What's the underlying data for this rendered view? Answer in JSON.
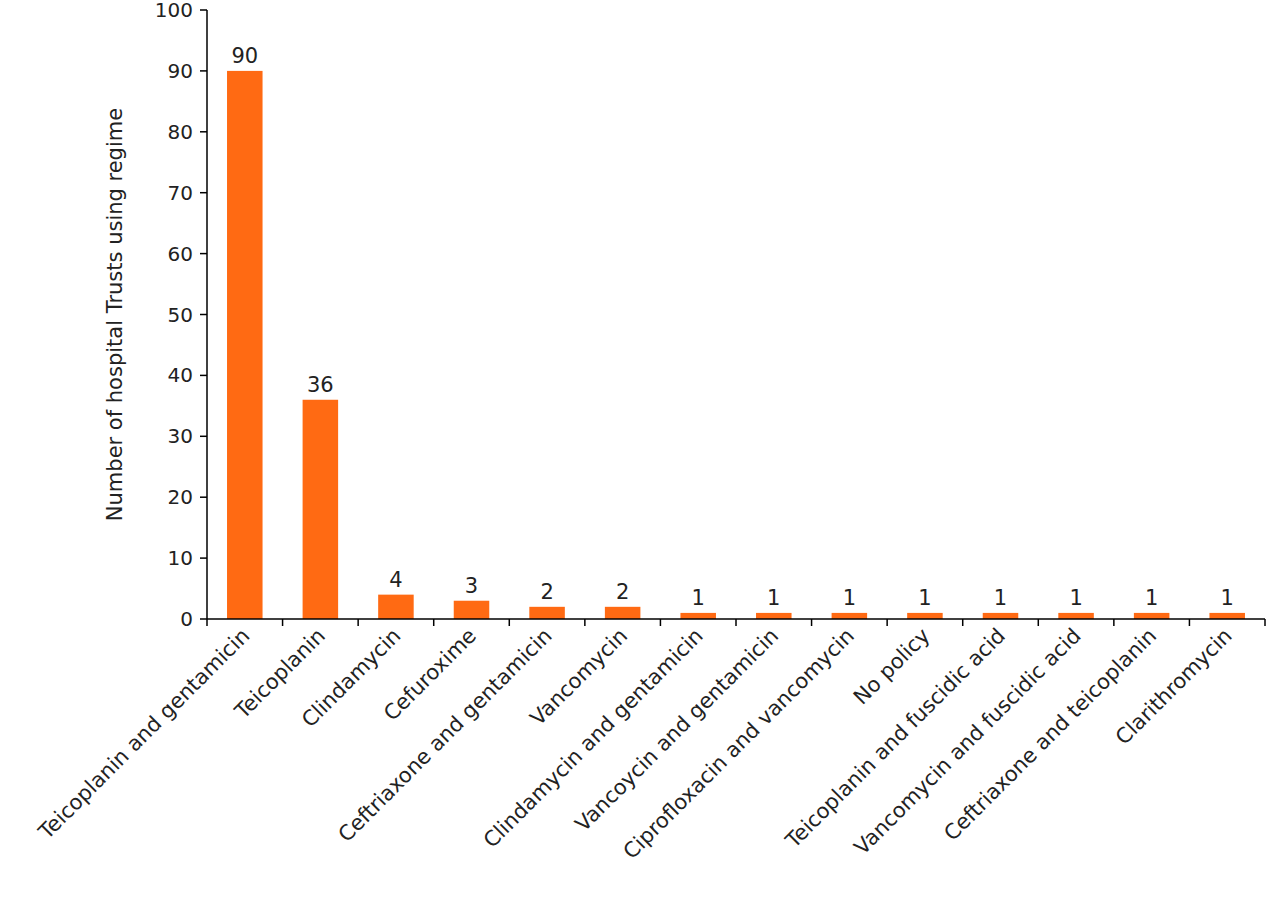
{
  "chart_data": {
    "type": "bar",
    "y_label": "Number of hospital Trusts using regime",
    "categories": [
      "Teicoplanin and gentamicin",
      "Teicoplanin",
      "Clindamycin",
      "Cefuroxime",
      "Ceftriaxone and gentamicin",
      "Vancomycin",
      "Clindamycin and gentamicin",
      "Vancoycin and gentamicin",
      "Ciprofloxacin and vancomycin",
      "No policy",
      "Teicoplanin and fuscidic acid",
      "Vancomycin and fuscidic acid",
      "Ceftriaxone and teicoplanin",
      "Clarithromycin"
    ],
    "values": [
      90,
      36,
      4,
      3,
      2,
      2,
      1,
      1,
      1,
      1,
      1,
      1,
      1,
      1
    ],
    "color": "#ff6a13",
    "ylim": [
      0,
      100
    ],
    "yticks": [
      0,
      10,
      20,
      30,
      40,
      50,
      60,
      70,
      80,
      90,
      100
    ],
    "grid": false,
    "data_labels": true
  }
}
